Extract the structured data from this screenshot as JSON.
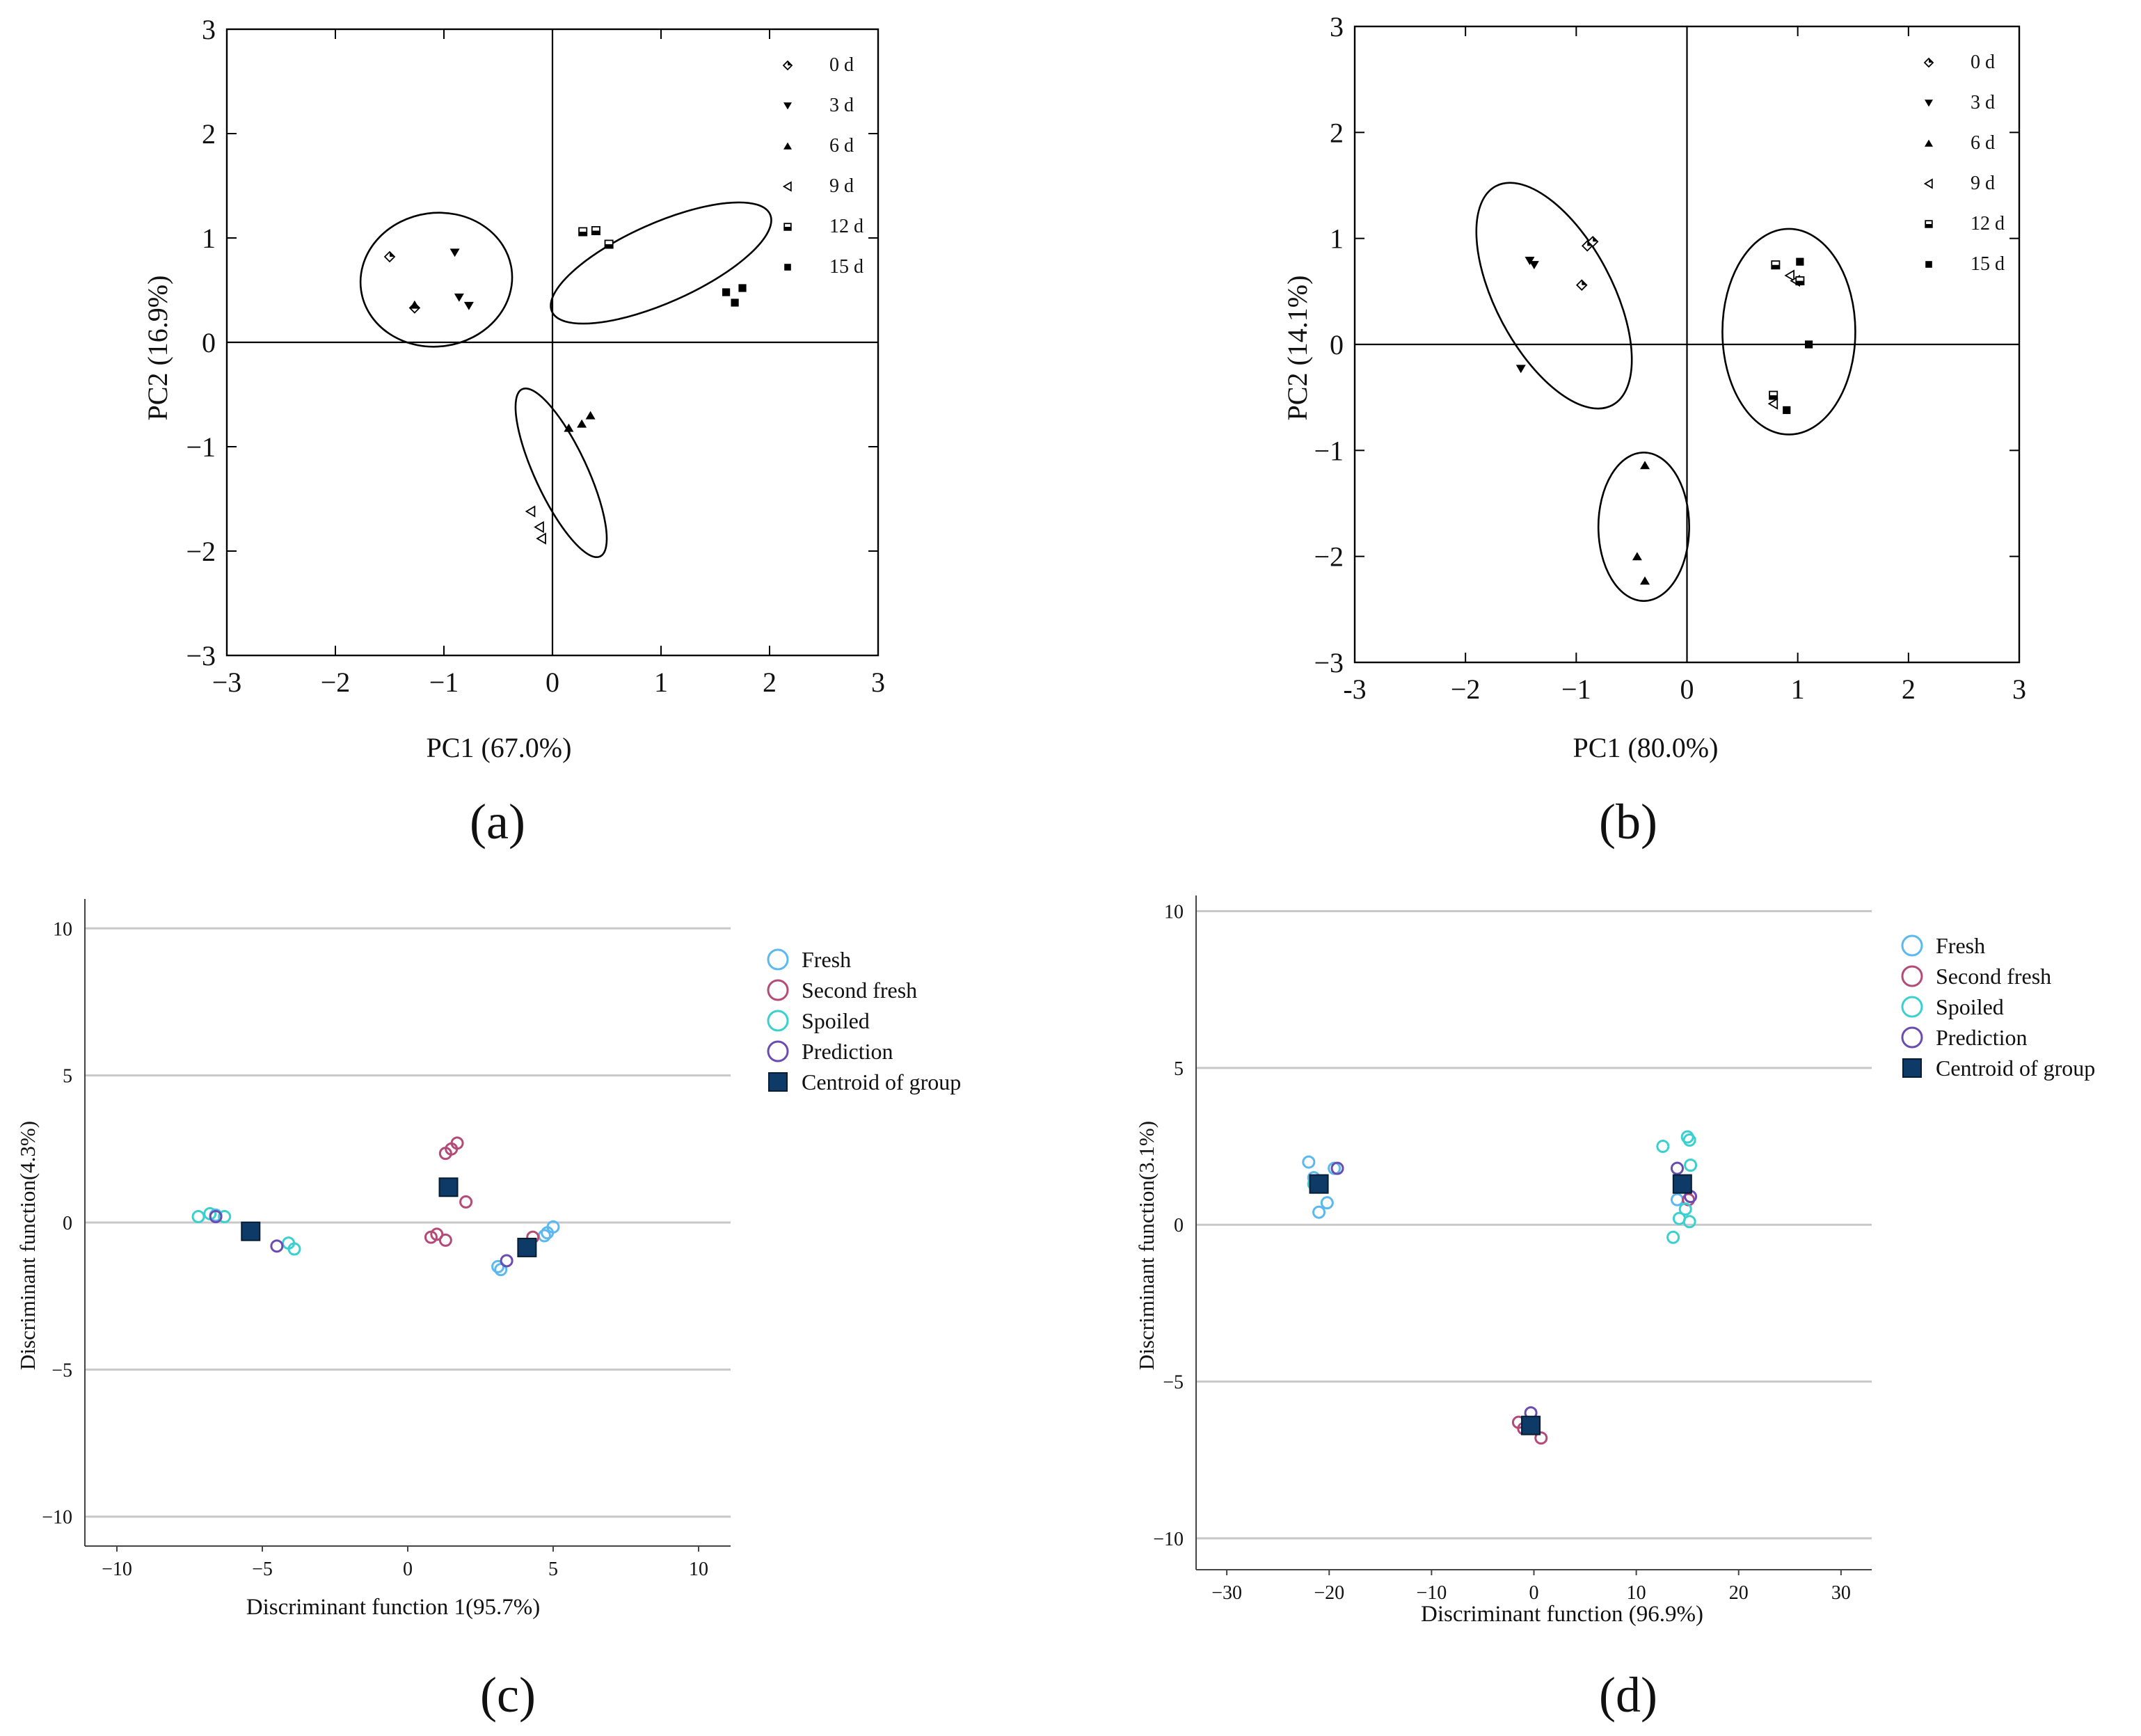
{
  "colors": {
    "axis": "#000000",
    "grid": "#c8c8c8",
    "fresh": "#5bb8f0",
    "second_fresh": "#b44a78",
    "spoiled": "#3ad0d0",
    "prediction": "#6a4cb0",
    "centroid": "#0d3a66"
  },
  "chart_data": [
    {
      "id": "a",
      "type": "scatter",
      "panel_label": "(a)",
      "xlabel": "PC1 (67.0%)",
      "ylabel": "PC2 (16.9%)",
      "xlim": [
        -3,
        3
      ],
      "ylim": [
        -3,
        3
      ],
      "xticks": [
        -3,
        -2,
        -1,
        0,
        1,
        2,
        3
      ],
      "yticks": [
        -3,
        -2,
        -1,
        0,
        1,
        2,
        3
      ],
      "xticklabels": [
        "−3",
        "−2",
        "−1",
        "0",
        "1",
        "2",
        "3"
      ],
      "yticklabels": [
        "−3",
        "−2",
        "−1",
        "0",
        "1",
        "2",
        "3"
      ],
      "legend": [
        "0 d",
        "3 d",
        "6 d",
        "9 d",
        "12 d",
        "15 d"
      ],
      "legend_markers": [
        "diamond",
        "tri-down",
        "tri-up",
        "tri-left",
        "half-square",
        "square"
      ],
      "series": [
        {
          "name": "0 d",
          "marker": "diamond",
          "points": [
            [
              -1.5,
              0.82
            ],
            [
              -1.27,
              0.33
            ]
          ]
        },
        {
          "name": "3 d",
          "marker": "tri-down",
          "points": [
            [
              -0.9,
              0.86
            ],
            [
              -0.86,
              0.43
            ],
            [
              -0.77,
              0.35
            ]
          ]
        },
        {
          "name": "6 d",
          "marker": "tri-up",
          "points": [
            [
              -1.27,
              0.36
            ],
            [
              0.15,
              -0.82
            ],
            [
              0.27,
              -0.78
            ],
            [
              0.35,
              -0.7
            ]
          ]
        },
        {
          "name": "9 d",
          "marker": "tri-left",
          "points": [
            [
              -0.2,
              -1.62
            ],
            [
              -0.12,
              -1.77
            ],
            [
              -0.1,
              -1.88
            ]
          ]
        },
        {
          "name": "12 d",
          "marker": "half-square",
          "points": [
            [
              0.28,
              1.06
            ],
            [
              0.4,
              1.07
            ],
            [
              0.52,
              0.94
            ]
          ]
        },
        {
          "name": "15 d",
          "marker": "square",
          "points": [
            [
              1.6,
              0.48
            ],
            [
              1.68,
              0.38
            ],
            [
              1.75,
              0.52
            ]
          ]
        }
      ],
      "ellipses": [
        {
          "center": [
            -1.07,
            0.6
          ],
          "half_widths": [
            0.7,
            0.64
          ],
          "angle_deg": -8
        },
        {
          "center": [
            1.0,
            0.76
          ],
          "radii": [
            1.1,
            0.38
          ],
          "angle_deg": -24
        },
        {
          "center": [
            0.08,
            -1.25
          ],
          "radii": [
            0.85,
            0.25
          ],
          "angle_deg": 65
        }
      ]
    },
    {
      "id": "b",
      "type": "scatter",
      "panel_label": "(b)",
      "xlabel": "PC1 (80.0%)",
      "ylabel": "PC2 (14.1%)",
      "xlim": [
        -3,
        3
      ],
      "ylim": [
        -3,
        3
      ],
      "xticks": [
        -3,
        -2,
        -1,
        0,
        1,
        2,
        3
      ],
      "yticks": [
        -3,
        -2,
        -1,
        0,
        1,
        2,
        3
      ],
      "xticklabels": [
        "-3",
        "−2",
        "−1",
        "0",
        "1",
        "2",
        "3"
      ],
      "yticklabels": [
        "−3",
        "−2",
        "−1",
        "0",
        "1",
        "2",
        "3"
      ],
      "legend": [
        "0 d",
        "3 d",
        "6 d",
        "9 d",
        "12 d",
        "15 d"
      ],
      "legend_markers": [
        "diamond",
        "tri-down",
        "tri-up",
        "tri-left",
        "half-square",
        "square"
      ],
      "series": [
        {
          "name": "0 d",
          "marker": "diamond",
          "points": [
            [
              -0.95,
              0.56
            ],
            [
              -0.9,
              0.93
            ],
            [
              -0.85,
              0.97
            ]
          ]
        },
        {
          "name": "3 d",
          "marker": "tri-down",
          "points": [
            [
              -1.42,
              0.79
            ],
            [
              -1.38,
              0.75
            ],
            [
              -1.5,
              -0.23
            ]
          ]
        },
        {
          "name": "6 d",
          "marker": "tri-up",
          "points": [
            [
              -0.38,
              -1.14
            ],
            [
              -0.45,
              -2.0
            ],
            [
              -0.38,
              -2.23
            ]
          ]
        },
        {
          "name": "9 d",
          "marker": "tri-left",
          "points": [
            [
              0.78,
              -0.56
            ],
            [
              0.93,
              0.65
            ],
            [
              0.98,
              0.6
            ]
          ]
        },
        {
          "name": "12 d",
          "marker": "half-square",
          "points": [
            [
              0.8,
              0.75
            ],
            [
              1.02,
              0.6
            ],
            [
              0.78,
              -0.48
            ]
          ]
        },
        {
          "name": "15 d",
          "marker": "square",
          "points": [
            [
              1.02,
              0.78
            ],
            [
              1.1,
              0.0
            ],
            [
              0.9,
              -0.62
            ]
          ]
        }
      ],
      "ellipses": [
        {
          "center": [
            -1.2,
            0.46
          ],
          "radii": [
            1.12,
            0.55
          ],
          "angle_deg": 62
        },
        {
          "center": [
            0.92,
            0.12
          ],
          "half_widths": [
            0.6,
            0.97
          ],
          "angle_deg": 0
        },
        {
          "center": [
            -0.39,
            -1.72
          ],
          "half_widths": [
            0.41,
            0.7
          ],
          "angle_deg": 0
        }
      ]
    },
    {
      "id": "c",
      "type": "scatter",
      "panel_label": "(c)",
      "xlabel": "Discriminant function 1(95.7%)",
      "ylabel": "Discriminant function(4.3%)",
      "xlim": [
        -11.1,
        11.1
      ],
      "ylim": [
        -11,
        11
      ],
      "grid": "horizontal",
      "xticks": [
        -10,
        -5,
        0,
        5,
        10
      ],
      "yticks": [
        10,
        5,
        0,
        -5,
        -10
      ],
      "xticklabels": [
        "−10",
        "−5",
        "0",
        "5",
        "10"
      ],
      "yticklabels": [
        "10",
        "5",
        "0",
        "−5",
        "−10"
      ],
      "legend": [
        "Fresh",
        "Second fresh",
        "Spoiled",
        "Prediction",
        "Centroid of group"
      ],
      "series": [
        {
          "name": "Fresh",
          "marker": "circle",
          "color_key": "fresh",
          "points": [
            [
              -6.6,
              0.25
            ],
            [
              3.1,
              -1.5
            ],
            [
              3.2,
              -1.6
            ],
            [
              4.7,
              -0.45
            ],
            [
              4.8,
              -0.35
            ],
            [
              5.0,
              -0.15
            ]
          ]
        },
        {
          "name": "Second fresh",
          "marker": "circle",
          "color_key": "second_fresh",
          "points": [
            [
              1.3,
              2.35
            ],
            [
              1.5,
              2.5
            ],
            [
              1.7,
              2.7
            ],
            [
              2.0,
              0.7
            ],
            [
              0.8,
              -0.5
            ],
            [
              1.0,
              -0.4
            ],
            [
              1.3,
              -0.6
            ],
            [
              4.3,
              -0.5
            ]
          ]
        },
        {
          "name": "Spoiled",
          "marker": "circle",
          "color_key": "spoiled",
          "points": [
            [
              -7.2,
              0.2
            ],
            [
              -6.8,
              0.3
            ],
            [
              -6.3,
              0.2
            ],
            [
              -4.1,
              -0.7
            ],
            [
              -3.9,
              -0.9
            ]
          ]
        },
        {
          "name": "Prediction",
          "marker": "circle",
          "color_key": "prediction",
          "points": [
            [
              -6.6,
              0.2
            ],
            [
              -4.5,
              -0.8
            ],
            [
              3.4,
              -1.3
            ]
          ]
        },
        {
          "name": "Centroid of group",
          "marker": "square",
          "color_key": "centroid",
          "points": [
            [
              -5.4,
              -0.3
            ],
            [
              1.4,
              1.2
            ],
            [
              4.1,
              -0.85
            ]
          ]
        }
      ]
    },
    {
      "id": "d",
      "type": "scatter",
      "panel_label": "(d)",
      "xlabel": "Discriminant function (96.9%)",
      "ylabel": "Discriminant function(3.1%)",
      "xlim": [
        -33,
        33
      ],
      "ylim": [
        -11,
        10.5
      ],
      "grid": "horizontal",
      "xticks": [
        -30,
        -20,
        -10,
        0,
        10,
        20,
        30
      ],
      "yticks": [
        10,
        5,
        0,
        -5,
        -10
      ],
      "xticklabels": [
        "−30",
        "−20",
        "−10",
        "0",
        "10",
        "20",
        "30"
      ],
      "yticklabels": [
        "10",
        "5",
        "0",
        "−5",
        "−10"
      ],
      "legend": [
        "Fresh",
        "Second fresh",
        "Spoiled",
        "Prediction",
        "Centroid of group"
      ],
      "series": [
        {
          "name": "Fresh",
          "marker": "circle",
          "color_key": "fresh",
          "points": [
            [
              -22.0,
              2.0
            ],
            [
              -21.5,
              1.5
            ],
            [
              -21.0,
              0.4
            ],
            [
              -20.2,
              0.7
            ],
            [
              -19.5,
              1.8
            ],
            [
              14.0,
              0.8
            ]
          ]
        },
        {
          "name": "Second fresh",
          "marker": "circle",
          "color_key": "second_fresh",
          "points": [
            [
              -1.5,
              -6.3
            ],
            [
              -1.0,
              -6.5
            ],
            [
              0.7,
              -6.8
            ],
            [
              15.1,
              0.8
            ]
          ]
        },
        {
          "name": "Spoiled",
          "marker": "circle",
          "color_key": "spoiled",
          "points": [
            [
              -21.5,
              1.3
            ],
            [
              12.6,
              2.5
            ],
            [
              13.6,
              -0.4
            ],
            [
              14.2,
              0.2
            ],
            [
              15.0,
              2.8
            ],
            [
              15.2,
              2.7
            ],
            [
              15.3,
              1.9
            ],
            [
              15.2,
              0.1
            ],
            [
              14.8,
              0.5
            ]
          ]
        },
        {
          "name": "Prediction",
          "marker": "circle",
          "color_key": "prediction",
          "points": [
            [
              -19.2,
              1.8
            ],
            [
              -0.3,
              -6.0
            ],
            [
              14.0,
              1.8
            ],
            [
              15.3,
              0.9
            ]
          ]
        },
        {
          "name": "Centroid of group",
          "marker": "square",
          "color_key": "centroid",
          "points": [
            [
              -21.0,
              1.3
            ],
            [
              -0.3,
              -6.4
            ],
            [
              14.5,
              1.3
            ]
          ]
        }
      ]
    }
  ]
}
